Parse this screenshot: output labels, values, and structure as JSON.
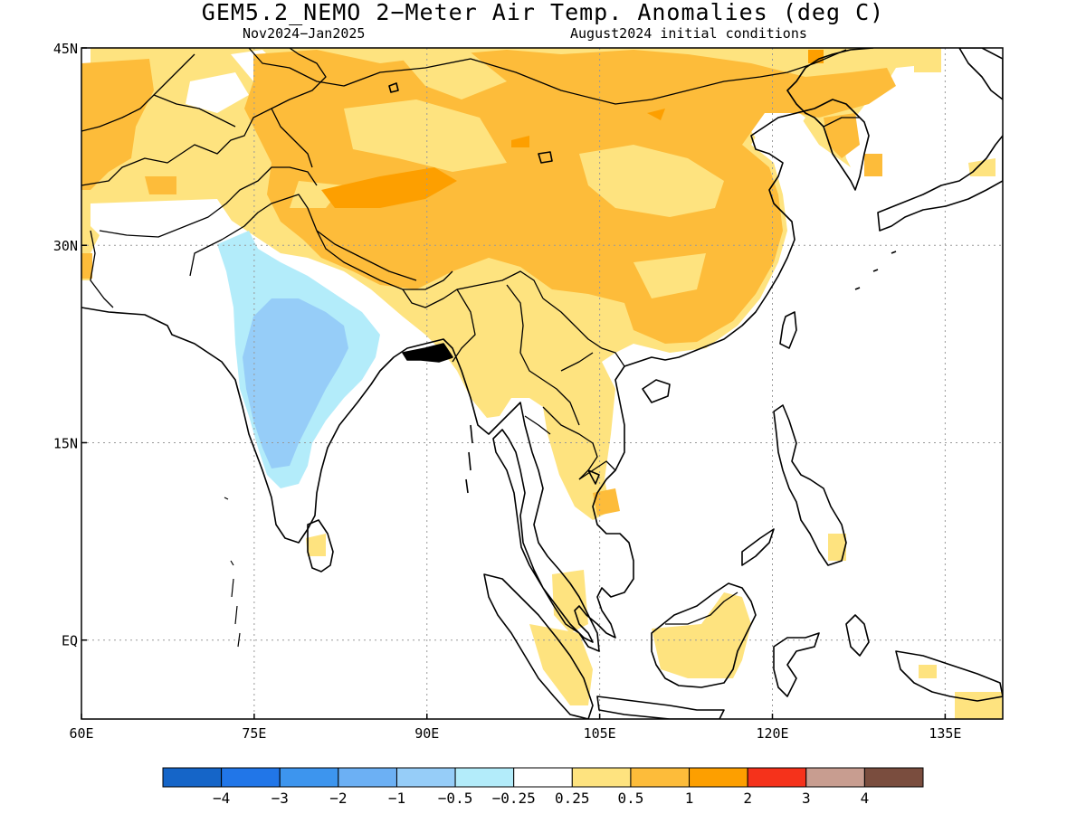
{
  "title": "GEM5.2_NEMO 2−Meter Air Temp. Anomalies (deg C)",
  "subtitle_left": "Nov2024−Jan2025",
  "subtitle_right": "August2024 initial conditions",
  "map": {
    "lon_range": [
      60,
      140
    ],
    "lat_range": [
      -6,
      45
    ],
    "x_ticks": [
      {
        "value": 60,
        "label": "60E"
      },
      {
        "value": 75,
        "label": "75E"
      },
      {
        "value": 90,
        "label": "90E"
      },
      {
        "value": 105,
        "label": "105E"
      },
      {
        "value": 120,
        "label": "120E"
      },
      {
        "value": 135,
        "label": "135E"
      }
    ],
    "y_ticks": [
      {
        "value": 45,
        "label": "45N"
      },
      {
        "value": 30,
        "label": "30N"
      },
      {
        "value": 15,
        "label": "15N"
      },
      {
        "value": 0,
        "label": "EQ"
      }
    ],
    "grid": "dotted",
    "anomaly_regions": [
      {
        "name": "Tibetan Plateau and China",
        "category": "0.5 to 1"
      },
      {
        "name": "Central Asia",
        "category": "0.5 to 1"
      },
      {
        "name": "Mainland Southeast Asia",
        "category": "0.25 to 0.5"
      },
      {
        "name": "Borneo",
        "category": "0.25 to 0.5"
      },
      {
        "name": "Central India",
        "category": "-1 to -0.5"
      },
      {
        "name": "Indian peninsula",
        "category": "-0.5 to -0.25"
      }
    ]
  },
  "colorbar": {
    "colors": [
      "#1565c8",
      "#2176e8",
      "#3d95ee",
      "#6cb0f4",
      "#96cdf8",
      "#b3ecfa",
      "#ffffff",
      "#fee37f",
      "#fdbc3a",
      "#fd9f00",
      "#f5321b",
      "#c89d90",
      "#7a4d3e"
    ],
    "labels": [
      "−4",
      "−3",
      "−2",
      "−1",
      "−0.5",
      "−0.25",
      "0.25",
      "0.5",
      "1",
      "2",
      "3",
      "4"
    ]
  }
}
